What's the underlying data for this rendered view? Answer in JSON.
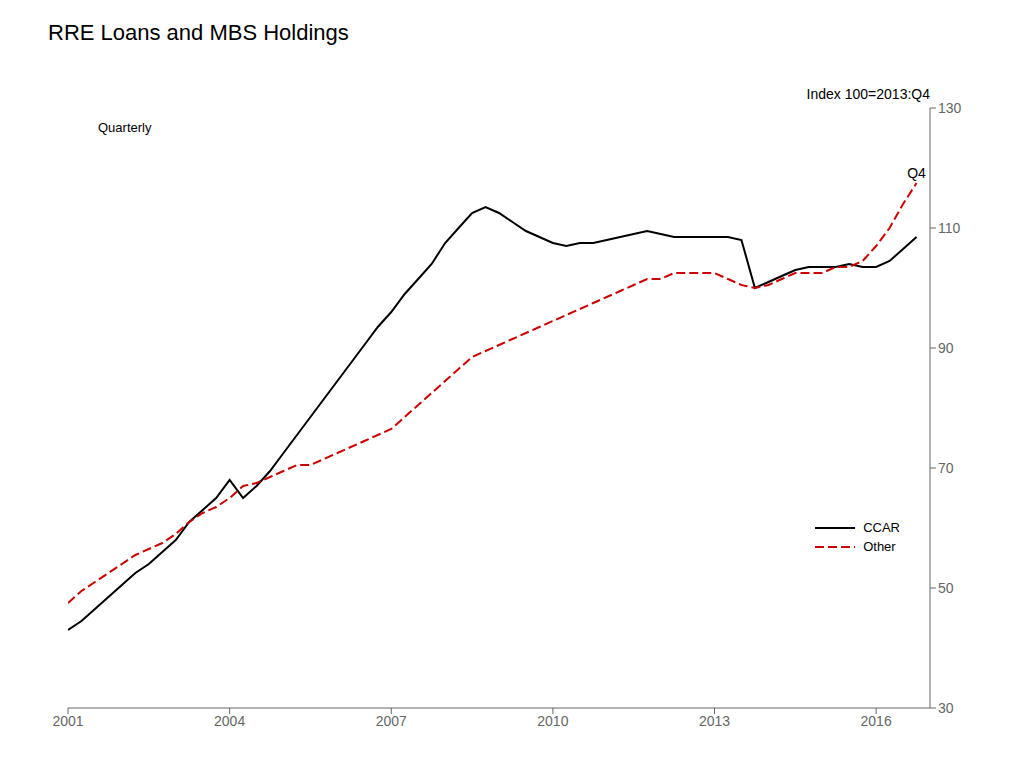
{
  "chart_data": {
    "type": "line",
    "title": "RRE Loans and MBS Holdings",
    "subtitle": "Index 100=2013:Q4",
    "annotations": [
      "Quarterly",
      "Q4"
    ],
    "x": [
      2001.0,
      2001.25,
      2001.5,
      2001.75,
      2002.0,
      2002.25,
      2002.5,
      2002.75,
      2003.0,
      2003.25,
      2003.5,
      2003.75,
      2004.0,
      2004.25,
      2004.5,
      2004.75,
      2005.0,
      2005.25,
      2005.5,
      2005.75,
      2006.0,
      2006.25,
      2006.5,
      2006.75,
      2007.0,
      2007.25,
      2007.5,
      2007.75,
      2008.0,
      2008.25,
      2008.5,
      2008.75,
      2009.0,
      2009.25,
      2009.5,
      2009.75,
      2010.0,
      2010.25,
      2010.5,
      2010.75,
      2011.0,
      2011.25,
      2011.5,
      2011.75,
      2012.0,
      2012.25,
      2012.5,
      2012.75,
      2013.0,
      2013.25,
      2013.5,
      2013.75,
      2014.0,
      2014.25,
      2014.5,
      2014.75,
      2015.0,
      2015.25,
      2015.5,
      2015.75,
      2016.0,
      2016.25,
      2016.5,
      2016.75
    ],
    "series": [
      {
        "name": "CCAR",
        "color": "#000000",
        "line_style": "solid",
        "values": [
          43.0,
          44.5,
          46.5,
          48.5,
          50.5,
          52.5,
          54.0,
          56.0,
          58.0,
          61.0,
          63.0,
          65.0,
          68.0,
          65.0,
          67.0,
          69.5,
          72.5,
          75.5,
          78.5,
          81.5,
          84.5,
          87.5,
          90.5,
          93.5,
          96.0,
          99.0,
          101.5,
          104.0,
          107.5,
          110.0,
          112.5,
          113.5,
          112.5,
          111.0,
          109.5,
          108.5,
          107.5,
          107.0,
          107.5,
          107.5,
          108.0,
          108.5,
          109.0,
          109.5,
          109.0,
          108.5,
          108.5,
          108.5,
          108.5,
          108.5,
          108.0,
          100.0,
          101.0,
          102.0,
          103.0,
          103.5,
          103.5,
          103.5,
          104.0,
          103.5,
          103.5,
          104.5,
          106.5,
          108.5
        ]
      },
      {
        "name": "Other",
        "color": "#cc0000",
        "line_style": "dashed",
        "values": [
          47.5,
          49.5,
          51.0,
          52.5,
          54.0,
          55.5,
          56.5,
          57.5,
          59.0,
          61.0,
          62.5,
          63.5,
          65.0,
          67.0,
          67.5,
          68.5,
          69.5,
          70.5,
          70.5,
          71.5,
          72.5,
          73.5,
          74.5,
          75.5,
          76.5,
          78.5,
          80.5,
          82.5,
          84.5,
          86.5,
          88.5,
          89.5,
          90.5,
          91.5,
          92.5,
          93.5,
          94.5,
          95.5,
          96.5,
          97.5,
          98.5,
          99.5,
          100.5,
          101.5,
          101.5,
          102.5,
          102.5,
          102.5,
          102.5,
          101.5,
          100.5,
          100.0,
          100.5,
          101.5,
          102.5,
          102.5,
          102.5,
          103.5,
          103.5,
          104.5,
          107.0,
          110.0,
          114.0,
          117.5
        ]
      }
    ],
    "xlim": [
      2001.0,
      2017.0
    ],
    "xticks": [
      2001,
      2004,
      2007,
      2010,
      2013,
      2016
    ],
    "ylim": [
      30,
      130
    ],
    "yticks": [
      30,
      50,
      70,
      90,
      110,
      130
    ],
    "grid": false,
    "legend": "lower right"
  }
}
